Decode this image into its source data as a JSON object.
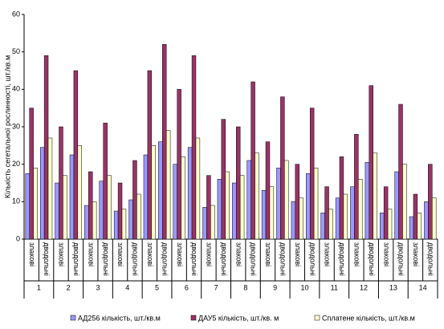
{
  "chart_data": {
    "type": "bar",
    "y_label": "Кількість сегетальної рослинності, шт./кв.м",
    "categories": [
      "злакові",
      "дводольні",
      "злакові",
      "дводольні",
      "злакові",
      "дводольні",
      "злакові",
      "дводольні",
      "злакові",
      "дводольні",
      "злакові",
      "дводольні",
      "злакові",
      "дводольні",
      "злакові",
      "дводольні",
      "злакові",
      "дводольні",
      "злакові",
      "дводольні",
      "злакові",
      "дводольні",
      "злакові",
      "дводольні",
      "злакові",
      "дводольні",
      "злакові",
      "дводольні"
    ],
    "groups": [
      "1",
      "2",
      "3",
      "4",
      "5",
      "6",
      "7",
      "8",
      "9",
      "10",
      "11",
      "12",
      "13",
      "14"
    ],
    "series": [
      {
        "name": "АД256 кількість, шт./кв.м",
        "color": "#9999ff",
        "values": [
          17.5,
          24.5,
          15,
          22.5,
          9,
          15.5,
          7.5,
          10.5,
          22.5,
          26,
          20,
          24.5,
          8.5,
          16,
          15,
          21,
          13,
          19,
          10,
          17.5,
          7,
          11,
          14,
          20.5,
          7,
          18,
          6,
          10
        ]
      },
      {
        "name": "ДАУ5 кількість, шт./кв. м",
        "color": "#993366",
        "values": [
          35,
          49,
          30,
          45,
          18,
          31,
          15,
          21,
          45,
          52,
          40,
          49,
          17,
          32,
          30,
          42,
          26,
          38,
          20,
          35,
          14,
          22,
          28,
          41,
          14,
          36,
          12,
          20
        ]
      },
      {
        "name": "Сплатене кількість, шт./кв.м",
        "color": "#ffffcc",
        "values": [
          19,
          27,
          17,
          25,
          10,
          17,
          8,
          12,
          25,
          29,
          22,
          27,
          9,
          18,
          17,
          23,
          14,
          21,
          11,
          19,
          8,
          12,
          16,
          23,
          8,
          20,
          7,
          11
        ]
      }
    ],
    "ylim": [
      0,
      60
    ],
    "yticks": [
      0,
      10,
      20,
      30,
      40,
      50,
      60
    ]
  }
}
